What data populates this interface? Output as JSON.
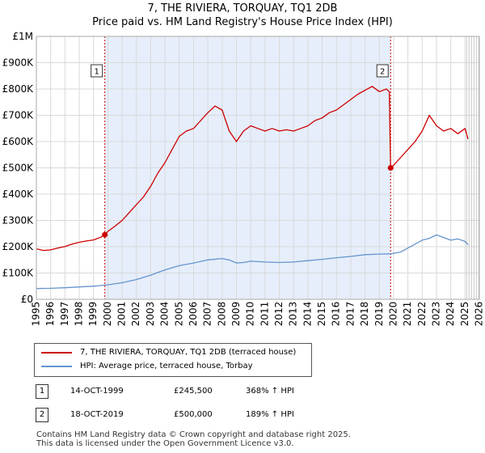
{
  "title": "7, THE RIVIERA, TORQUAY, TQ1 2DB",
  "subtitle": "Price paid vs. HM Land Registry's House Price Index (HPI)",
  "colors": {
    "property": "#cc0000",
    "hpi": "#6495cd",
    "shade": "#e6eefb",
    "grid": "#d9d9d9"
  },
  "legend": [
    {
      "label": "7, THE RIVIERA, TORQUAY, TQ1 2DB (terraced house)",
      "color": "#cc0000"
    },
    {
      "label": "HPI: Average price, terraced house, Torbay",
      "color": "#6495cd"
    }
  ],
  "sales": [
    {
      "num": "1",
      "date": "14-OCT-1999",
      "price": "£245,500",
      "hpi": "368% ↑ HPI"
    },
    {
      "num": "2",
      "date": "18-OCT-2019",
      "price": "£500,000",
      "hpi": "189% ↑ HPI"
    }
  ],
  "footer": [
    "Contains HM Land Registry data © Crown copyright and database right 2025.",
    "This data is licensed under the Open Government Licence v3.0."
  ],
  "chart_data": {
    "type": "line",
    "title": "7, THE RIVIERA, TORQUAY, TQ1 2DB",
    "subtitle": "Price paid vs. HM Land Registry's House Price Index (HPI)",
    "xlim": [
      1995,
      2026
    ],
    "ylim": [
      0,
      1000000
    ],
    "x_ticks": [
      1995,
      1996,
      1997,
      1998,
      1999,
      2000,
      2001,
      2002,
      2003,
      2004,
      2005,
      2006,
      2007,
      2008,
      2009,
      2010,
      2011,
      2012,
      2013,
      2014,
      2015,
      2016,
      2017,
      2018,
      2019,
      2020,
      2021,
      2022,
      2023,
      2024,
      2025,
      2026
    ],
    "y_ticks": [
      {
        "value": 0,
        "label": "£0"
      },
      {
        "value": 100000,
        "label": "£100K"
      },
      {
        "value": 200000,
        "label": "£200K"
      },
      {
        "value": 300000,
        "label": "£300K"
      },
      {
        "value": 400000,
        "label": "£400K"
      },
      {
        "value": 500000,
        "label": "£500K"
      },
      {
        "value": 600000,
        "label": "£600K"
      },
      {
        "value": 700000,
        "label": "£700K"
      },
      {
        "value": 800000,
        "label": "£800K"
      },
      {
        "value": 900000,
        "label": "£900K"
      },
      {
        "value": 1000000,
        "label": "£1M"
      }
    ],
    "grid": true,
    "shaded_period": [
      1999.79,
      2019.79
    ],
    "forecast_from": 2025.0,
    "series": [
      {
        "name": "7, THE RIVIERA, TORQUAY, TQ1 2DB (terraced house)",
        "x": [
          1995.0,
          1995.5,
          1996.0,
          1996.5,
          1997.0,
          1997.5,
          1998.0,
          1998.5,
          1999.0,
          1999.5,
          1999.79,
          2000.0,
          2000.5,
          2001.0,
          2001.5,
          2002.0,
          2002.5,
          2003.0,
          2003.5,
          2004.0,
          2004.5,
          2005.0,
          2005.5,
          2006.0,
          2006.5,
          2007.0,
          2007.5,
          2008.0,
          2008.5,
          2009.0,
          2009.5,
          2010.0,
          2010.5,
          2011.0,
          2011.5,
          2012.0,
          2012.5,
          2013.0,
          2013.5,
          2014.0,
          2014.5,
          2015.0,
          2015.5,
          2016.0,
          2016.5,
          2017.0,
          2017.5,
          2018.0,
          2018.5,
          2019.0,
          2019.5,
          2019.7,
          2019.79,
          2020.0,
          2020.5,
          2021.0,
          2021.5,
          2022.0,
          2022.5,
          2023.0,
          2023.5,
          2024.0,
          2024.5,
          2025.0,
          2025.2
        ],
        "values": [
          192000,
          186000,
          188000,
          195000,
          201000,
          210000,
          217000,
          222000,
          226000,
          236000,
          245500,
          258000,
          278000,
          300000,
          330000,
          360000,
          390000,
          430000,
          480000,
          520000,
          570000,
          620000,
          640000,
          650000,
          680000,
          710000,
          735000,
          720000,
          640000,
          600000,
          640000,
          660000,
          650000,
          640000,
          650000,
          640000,
          645000,
          640000,
          650000,
          660000,
          680000,
          690000,
          710000,
          720000,
          740000,
          760000,
          780000,
          795000,
          810000,
          790000,
          800000,
          790000,
          500000,
          510000,
          540000,
          570000,
          600000,
          640000,
          700000,
          660000,
          640000,
          650000,
          630000,
          650000,
          610000
        ]
      },
      {
        "name": "HPI: Average price, terraced house, Torbay",
        "x": [
          1995.0,
          1996.0,
          1997.0,
          1998.0,
          1999.0,
          2000.0,
          2001.0,
          2002.0,
          2003.0,
          2004.0,
          2005.0,
          2006.0,
          2007.0,
          2008.0,
          2008.5,
          2009.0,
          2009.5,
          2010.0,
          2011.0,
          2012.0,
          2013.0,
          2014.0,
          2015.0,
          2016.0,
          2017.0,
          2018.0,
          2019.0,
          2019.79,
          2020.0,
          2020.5,
          2021.0,
          2021.5,
          2022.0,
          2022.5,
          2023.0,
          2023.5,
          2024.0,
          2024.5,
          2025.0,
          2025.2
        ],
        "values": [
          41000,
          42000,
          44000,
          47000,
          50000,
          55000,
          63000,
          75000,
          92000,
          112000,
          128000,
          138000,
          150000,
          155000,
          150000,
          138000,
          140000,
          145000,
          142000,
          140000,
          142000,
          147000,
          152000,
          158000,
          163000,
          170000,
          172000,
          173000,
          175000,
          180000,
          195000,
          210000,
          225000,
          232000,
          245000,
          235000,
          225000,
          230000,
          220000,
          208000
        ]
      }
    ],
    "markers": [
      {
        "label": "1",
        "x": 1999.79,
        "y": 245500
      },
      {
        "label": "2",
        "x": 2019.79,
        "y": 500000
      }
    ]
  }
}
